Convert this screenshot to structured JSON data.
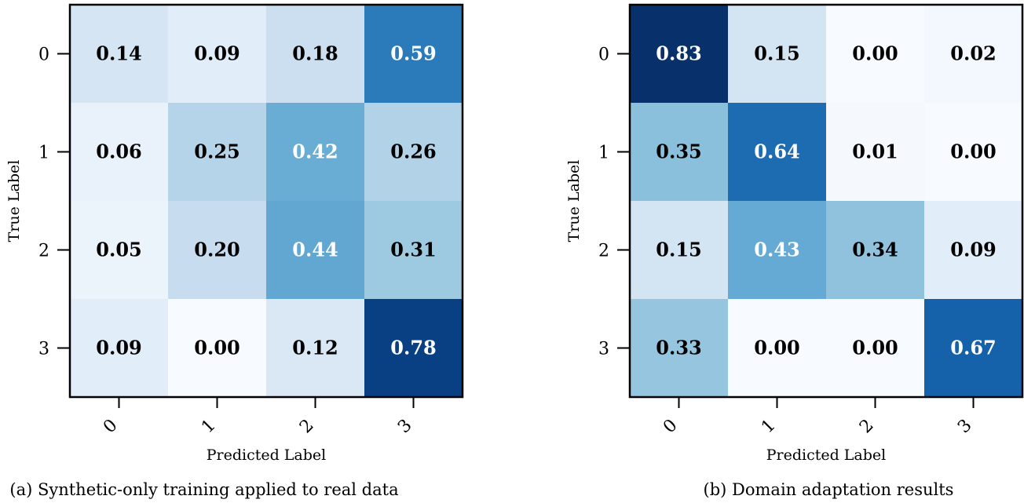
{
  "chart_data": [
    {
      "type": "heatmap",
      "caption": "(a) Synthetic-only training applied to real data",
      "xlabel": "Predicted Label",
      "ylabel": "True Label",
      "x_ticks": [
        "0",
        "1",
        "2",
        "3"
      ],
      "y_ticks": [
        "0",
        "1",
        "2",
        "3"
      ],
      "colormap": "Blues",
      "value_range": [
        0,
        0.83
      ],
      "values": [
        [
          0.14,
          0.09,
          0.18,
          0.59
        ],
        [
          0.06,
          0.25,
          0.42,
          0.26
        ],
        [
          0.05,
          0.2,
          0.44,
          0.31
        ],
        [
          0.09,
          0.0,
          0.12,
          0.78
        ]
      ],
      "labels": [
        [
          "0.14",
          "0.09",
          "0.18",
          "0.59"
        ],
        [
          "0.06",
          "0.25",
          "0.42",
          "0.26"
        ],
        [
          "0.05",
          "0.20",
          "0.44",
          "0.31"
        ],
        [
          "0.09",
          "0.00",
          "0.12",
          "0.78"
        ]
      ]
    },
    {
      "type": "heatmap",
      "caption": "(b) Domain adaptation results",
      "xlabel": "Predicted Label",
      "ylabel": "True Label",
      "x_ticks": [
        "0",
        "1",
        "2",
        "3"
      ],
      "y_ticks": [
        "0",
        "1",
        "2",
        "3"
      ],
      "colormap": "Blues",
      "value_range": [
        0,
        0.83
      ],
      "values": [
        [
          0.83,
          0.15,
          0.0,
          0.02
        ],
        [
          0.35,
          0.64,
          0.01,
          0.0
        ],
        [
          0.15,
          0.43,
          0.34,
          0.09
        ],
        [
          0.33,
          0.0,
          0.0,
          0.67
        ]
      ],
      "labels": [
        [
          "0.83",
          "0.15",
          "0.00",
          "0.02"
        ],
        [
          "0.35",
          "0.64",
          "0.01",
          "0.00"
        ],
        [
          "0.15",
          "0.43",
          "0.34",
          "0.09"
        ],
        [
          "0.33",
          "0.00",
          "0.00",
          "0.67"
        ]
      ]
    }
  ]
}
